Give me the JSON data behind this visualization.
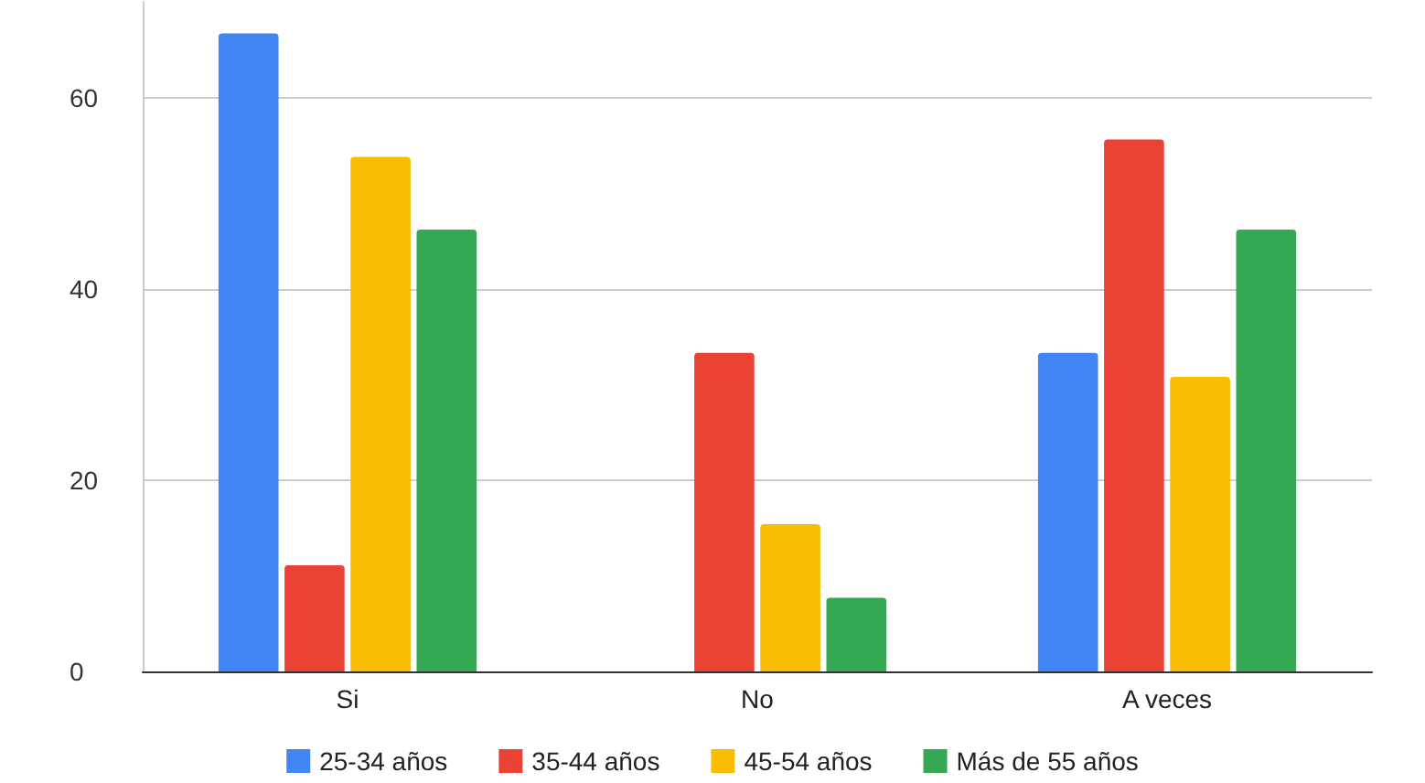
{
  "chart_data": {
    "type": "bar",
    "categories": [
      "Si",
      "No",
      "A veces"
    ],
    "series": [
      {
        "name": "25-34 años",
        "color": "#4285f4",
        "values": [
          66.7,
          0,
          33.3
        ]
      },
      {
        "name": "35-44 años",
        "color": "#ea4335",
        "values": [
          11.1,
          33.3,
          55.6
        ]
      },
      {
        "name": "45-54 años",
        "color": "#fbbc04",
        "values": [
          53.8,
          15.4,
          30.8
        ]
      },
      {
        "name": "Más de 55 años",
        "color": "#34a853",
        "values": [
          46.2,
          7.7,
          46.2
        ]
      }
    ],
    "ylim": [
      0,
      70
    ],
    "yticks": [
      0,
      20,
      40,
      60
    ],
    "grid": "y",
    "legend": "bottom"
  }
}
